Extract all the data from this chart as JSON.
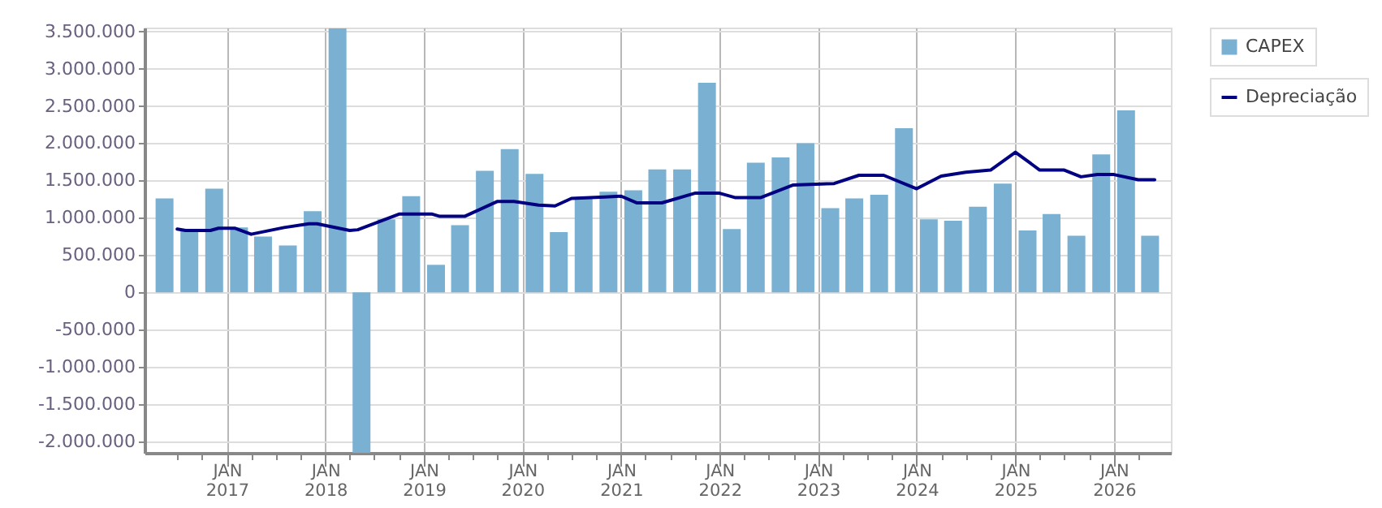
{
  "chart_data": {
    "type": "bar",
    "x": [
      "2016-05-15",
      "2016-08-15",
      "2016-11-15",
      "2017-02-15",
      "2017-05-15",
      "2017-08-15",
      "2017-11-15",
      "2018-02-15",
      "2018-05-15",
      "2018-08-15",
      "2018-11-15",
      "2019-02-15",
      "2019-05-15",
      "2019-08-15",
      "2019-11-15",
      "2020-02-15",
      "2020-05-15",
      "2020-08-15",
      "2020-11-15",
      "2021-02-15",
      "2021-05-15",
      "2021-08-15",
      "2021-11-15",
      "2022-02-15",
      "2022-05-15",
      "2022-08-15",
      "2022-11-15",
      "2023-02-15",
      "2023-05-15",
      "2023-08-15",
      "2023-11-15",
      "2024-02-15",
      "2024-05-15",
      "2024-08-15",
      "2024-11-15",
      "2025-02-15",
      "2025-05-15",
      "2025-08-15",
      "2025-11-15",
      "2026-02-15",
      "2026-05-15"
    ],
    "series": [
      {
        "name": "CAPEX",
        "color": "#7ab0d2",
        "values": [
          1260000,
          830000,
          1390000,
          870000,
          750000,
          630000,
          1090000,
          3540000,
          -2150000,
          980000,
          1290000,
          370000,
          900000,
          1630000,
          1920000,
          1590000,
          810000,
          1270000,
          1350000,
          1370000,
          1650000,
          1650000,
          2810000,
          850000,
          1740000,
          1810000,
          2000000,
          1130000,
          1260000,
          1310000,
          2200000,
          980000,
          960000,
          1150000,
          1460000,
          830000,
          1050000,
          760000,
          1850000,
          2440000,
          760000
        ]
      },
      {
        "name": "Depreciação",
        "type": "line",
        "color": "#000080",
        "x": [
          "2016-07",
          "2016-08",
          "2016-11",
          "2016-12",
          "2017-02",
          "2017-04",
          "2017-08",
          "2017-11",
          "2017-12",
          "2018-04",
          "2018-05",
          "2018-10",
          "2019-02",
          "2019-03",
          "2019-06",
          "2019-10",
          "2019-12",
          "2020-03",
          "2020-05",
          "2020-07",
          "2020-11",
          "2021-01",
          "2021-03",
          "2021-06",
          "2021-10",
          "2022-01",
          "2022-03",
          "2022-06",
          "2022-10",
          "2023-03",
          "2023-06",
          "2023-09",
          "2024-01",
          "2024-04",
          "2024-07",
          "2024-10",
          "2025-01",
          "2025-04",
          "2025-07",
          "2025-09",
          "2025-11",
          "2026-01",
          "2026-04",
          "2026-06"
        ],
        "values": [
          850000,
          830000,
          830000,
          860000,
          860000,
          780000,
          870000,
          920000,
          920000,
          830000,
          840000,
          1050000,
          1050000,
          1020000,
          1020000,
          1220000,
          1220000,
          1170000,
          1160000,
          1260000,
          1280000,
          1290000,
          1200000,
          1200000,
          1330000,
          1330000,
          1270000,
          1270000,
          1440000,
          1460000,
          1570000,
          1570000,
          1390000,
          1560000,
          1610000,
          1640000,
          1880000,
          1640000,
          1640000,
          1550000,
          1580000,
          1580000,
          1510000,
          1510000
        ]
      }
    ],
    "xlim": [
      "2016-04-01",
      "2026-07-01"
    ],
    "xticks": [
      {
        "value": "2016-07-01",
        "label": null
      },
      {
        "value": "2016-10-01",
        "label": null
      },
      {
        "value": "2017-01-01",
        "label": "JAN\n2017"
      },
      {
        "value": "2017-04-01",
        "label": null
      },
      {
        "value": "2017-07-01",
        "label": null
      },
      {
        "value": "2017-10-01",
        "label": null
      },
      {
        "value": "2018-01-01",
        "label": "JAN\n2018"
      },
      {
        "value": "2018-04-01",
        "label": null
      },
      {
        "value": "2018-07-01",
        "label": null
      },
      {
        "value": "2018-10-01",
        "label": null
      },
      {
        "value": "2019-01-01",
        "label": "JAN\n2019"
      },
      {
        "value": "2019-04-01",
        "label": null
      },
      {
        "value": "2019-07-01",
        "label": null
      },
      {
        "value": "2019-10-01",
        "label": null
      },
      {
        "value": "2020-01-01",
        "label": "JAN\n2020"
      },
      {
        "value": "2020-04-01",
        "label": null
      },
      {
        "value": "2020-07-01",
        "label": null
      },
      {
        "value": "2020-10-01",
        "label": null
      },
      {
        "value": "2021-01-01",
        "label": "JAN\n2021"
      },
      {
        "value": "2021-04-01",
        "label": null
      },
      {
        "value": "2021-07-01",
        "label": null
      },
      {
        "value": "2021-10-01",
        "label": null
      },
      {
        "value": "2022-01-01",
        "label": "JAN\n2022"
      },
      {
        "value": "2022-04-01",
        "label": null
      },
      {
        "value": "2022-07-01",
        "label": null
      },
      {
        "value": "2022-10-01",
        "label": null
      },
      {
        "value": "2023-01-01",
        "label": "JAN\n2023"
      },
      {
        "value": "2023-04-01",
        "label": null
      },
      {
        "value": "2023-07-01",
        "label": null
      },
      {
        "value": "2023-10-01",
        "label": null
      },
      {
        "value": "2024-01-01",
        "label": "JAN\n2024"
      },
      {
        "value": "2024-04-01",
        "label": null
      },
      {
        "value": "2024-07-01",
        "label": null
      },
      {
        "value": "2024-10-01",
        "label": null
      },
      {
        "value": "2025-01-01",
        "label": "JAN\n2025"
      },
      {
        "value": "2025-04-01",
        "label": null
      },
      {
        "value": "2025-07-01",
        "label": null
      },
      {
        "value": "2025-10-01",
        "label": null
      },
      {
        "value": "2026-01-01",
        "label": "JAN\n2026"
      },
      {
        "value": "2026-04-01",
        "label": null
      }
    ],
    "ylim": [
      -2150000,
      3550000
    ],
    "yticks": [
      {
        "value": -2000000,
        "label": "-2.000.000"
      },
      {
        "value": -1500000,
        "label": "-1.500.000"
      },
      {
        "value": -1000000,
        "label": "-1.000.000"
      },
      {
        "value": -500000,
        "label": "-500.000"
      },
      {
        "value": 0,
        "label": "0"
      },
      {
        "value": 500000,
        "label": "500.000"
      },
      {
        "value": 1000000,
        "label": "1.000.000"
      },
      {
        "value": 1500000,
        "label": "1.500.000"
      },
      {
        "value": 2000000,
        "label": "2.000.000"
      },
      {
        "value": 2500000,
        "label": "2.500.000"
      },
      {
        "value": 3000000,
        "label": "3.000.000"
      },
      {
        "value": 3500000,
        "label": "3.500.000"
      }
    ],
    "grid": true,
    "legend": "top right"
  }
}
